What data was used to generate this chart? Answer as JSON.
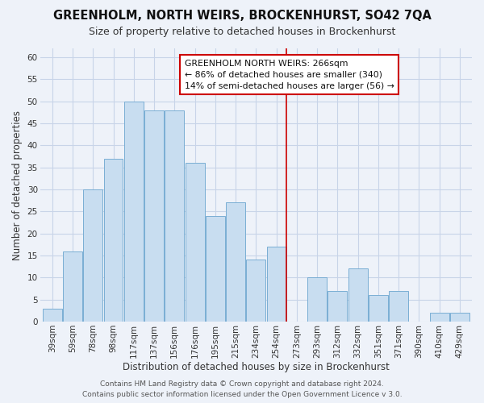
{
  "title": "GREENHOLM, NORTH WEIRS, BROCKENHURST, SO42 7QA",
  "subtitle": "Size of property relative to detached houses in Brockenhurst",
  "xlabel": "Distribution of detached houses by size in Brockenhurst",
  "ylabel": "Number of detached properties",
  "categories": [
    "39sqm",
    "59sqm",
    "78sqm",
    "98sqm",
    "117sqm",
    "137sqm",
    "156sqm",
    "176sqm",
    "195sqm",
    "215sqm",
    "234sqm",
    "254sqm",
    "273sqm",
    "293sqm",
    "312sqm",
    "332sqm",
    "351sqm",
    "371sqm",
    "390sqm",
    "410sqm",
    "429sqm"
  ],
  "values": [
    3,
    16,
    30,
    37,
    50,
    48,
    48,
    36,
    24,
    27,
    14,
    17,
    0,
    10,
    7,
    12,
    6,
    7,
    0,
    2,
    2
  ],
  "bar_color": "#c8ddf0",
  "bar_edge_color": "#7aaed4",
  "grid_color": "#c8d4e8",
  "background_color": "#eef2f9",
  "vline_index": 12,
  "vline_color": "#cc0000",
  "annotation_text": "GREENHOLM NORTH WEIRS: 266sqm\n← 86% of detached houses are smaller (340)\n14% of semi-detached houses are larger (56) →",
  "annotation_box_color": "#ffffff",
  "annotation_box_edge": "#cc0000",
  "footer": "Contains HM Land Registry data © Crown copyright and database right 2024.\nContains public sector information licensed under the Open Government Licence v 3.0.",
  "ylim": [
    0,
    62
  ],
  "yticks": [
    0,
    5,
    10,
    15,
    20,
    25,
    30,
    35,
    40,
    45,
    50,
    55,
    60
  ],
  "title_fontsize": 10.5,
  "subtitle_fontsize": 9,
  "xlabel_fontsize": 8.5,
  "ylabel_fontsize": 8.5,
  "tick_fontsize": 7.5,
  "footer_fontsize": 6.5
}
